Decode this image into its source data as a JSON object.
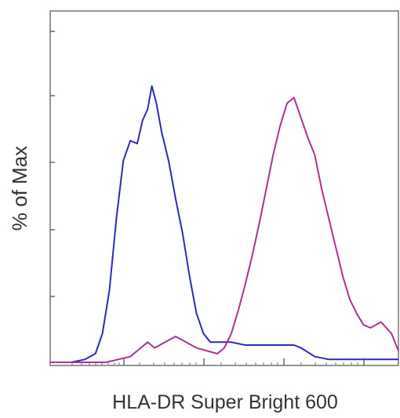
{
  "chart_data": {
    "type": "line",
    "xlabel": "HLA-DR Super Bright 600",
    "ylabel": "% of Max",
    "xlim": [
      0,
      1000
    ],
    "ylim": [
      0,
      100
    ],
    "grid": false,
    "legend": "none",
    "series": [
      {
        "color": "#2b2bb5",
        "points": [
          [
            0,
            0
          ],
          [
            60,
            0
          ],
          [
            100,
            1
          ],
          [
            130,
            3
          ],
          [
            150,
            10
          ],
          [
            170,
            25
          ],
          [
            190,
            50
          ],
          [
            210,
            70
          ],
          [
            230,
            77
          ],
          [
            250,
            76
          ],
          [
            265,
            84
          ],
          [
            280,
            88
          ],
          [
            292,
            96
          ],
          [
            305,
            90
          ],
          [
            320,
            80
          ],
          [
            340,
            70
          ],
          [
            360,
            57
          ],
          [
            380,
            45
          ],
          [
            400,
            30
          ],
          [
            420,
            17
          ],
          [
            440,
            10
          ],
          [
            460,
            7
          ],
          [
            480,
            7
          ],
          [
            520,
            7
          ],
          [
            560,
            6
          ],
          [
            600,
            6
          ],
          [
            650,
            6
          ],
          [
            700,
            6
          ],
          [
            720,
            5
          ],
          [
            760,
            2
          ],
          [
            800,
            1
          ],
          [
            880,
            1
          ],
          [
            1000,
            1
          ]
        ]
      },
      {
        "color": "#b0308f",
        "points": [
          [
            0,
            0
          ],
          [
            160,
            0
          ],
          [
            230,
            2
          ],
          [
            260,
            5
          ],
          [
            280,
            7
          ],
          [
            300,
            5
          ],
          [
            330,
            7
          ],
          [
            360,
            9
          ],
          [
            390,
            7
          ],
          [
            420,
            5
          ],
          [
            450,
            4
          ],
          [
            480,
            3
          ],
          [
            500,
            5
          ],
          [
            520,
            10
          ],
          [
            540,
            18
          ],
          [
            560,
            27
          ],
          [
            580,
            37
          ],
          [
            600,
            48
          ],
          [
            620,
            60
          ],
          [
            640,
            72
          ],
          [
            660,
            82
          ],
          [
            680,
            90
          ],
          [
            700,
            92
          ],
          [
            720,
            85
          ],
          [
            740,
            78
          ],
          [
            760,
            72
          ],
          [
            780,
            60
          ],
          [
            800,
            50
          ],
          [
            820,
            40
          ],
          [
            840,
            30
          ],
          [
            860,
            22
          ],
          [
            880,
            17
          ],
          [
            900,
            13
          ],
          [
            920,
            12
          ],
          [
            950,
            14
          ],
          [
            980,
            10
          ],
          [
            1000,
            4
          ]
        ]
      }
    ]
  }
}
